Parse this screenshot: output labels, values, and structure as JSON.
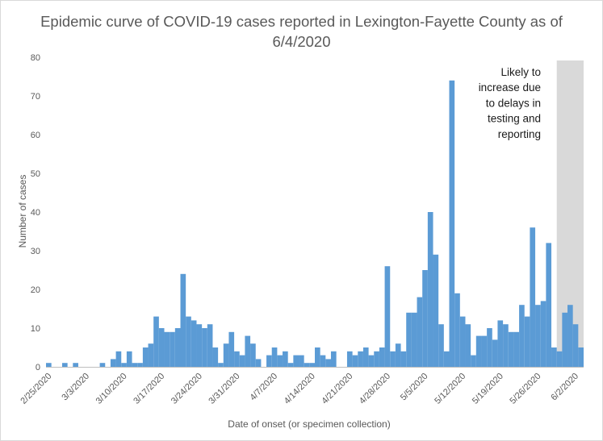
{
  "chart_data": {
    "type": "bar",
    "title_lines": [
      "Epidemic curve of COVID-19 cases reported in Lexington-Fayette County as of",
      "6/4/2020"
    ],
    "xlabel": "Date of onset (or specimen collection)",
    "ylabel": "Number of cases",
    "ylim": [
      0,
      80
    ],
    "yticks": [
      0,
      10,
      20,
      30,
      40,
      50,
      60,
      70,
      80
    ],
    "grid": false,
    "start_date": "2/25/2020",
    "x_tick_labels": [
      "2/25/2020",
      "3/3/2020",
      "3/10/2020",
      "3/17/2020",
      "3/24/2020",
      "3/31/2020",
      "4/7/2020",
      "4/14/2020",
      "4/21/2020",
      "4/28/2020",
      "5/5/2020",
      "5/12/2020",
      "5/19/2020",
      "5/26/2020",
      "6/2/2020"
    ],
    "values": [
      1,
      0,
      0,
      1,
      0,
      1,
      0,
      0,
      0,
      0,
      1,
      0,
      2,
      4,
      1,
      4,
      1,
      1,
      5,
      6,
      13,
      10,
      9,
      9,
      10,
      24,
      13,
      12,
      11,
      10,
      11,
      5,
      1,
      6,
      9,
      4,
      3,
      8,
      6,
      2,
      0,
      3,
      5,
      3,
      4,
      1,
      3,
      3,
      1,
      1,
      5,
      3,
      2,
      4,
      0,
      0,
      4,
      3,
      4,
      5,
      3,
      4,
      5,
      26,
      4,
      6,
      4,
      14,
      14,
      18,
      25,
      40,
      29,
      11,
      4,
      74,
      19,
      13,
      11,
      3,
      8,
      8,
      10,
      7,
      12,
      11,
      9,
      9,
      16,
      13,
      36,
      16,
      17,
      32,
      5,
      4,
      14,
      16,
      11,
      5
    ],
    "bar_color": "#5b9bd5",
    "annotation": {
      "lines": [
        "Likely to",
        "increase due",
        "to delays in",
        "testing and",
        "reporting"
      ],
      "shade_start": "5/30/2020",
      "shade_color": "#d9d9d9"
    }
  }
}
